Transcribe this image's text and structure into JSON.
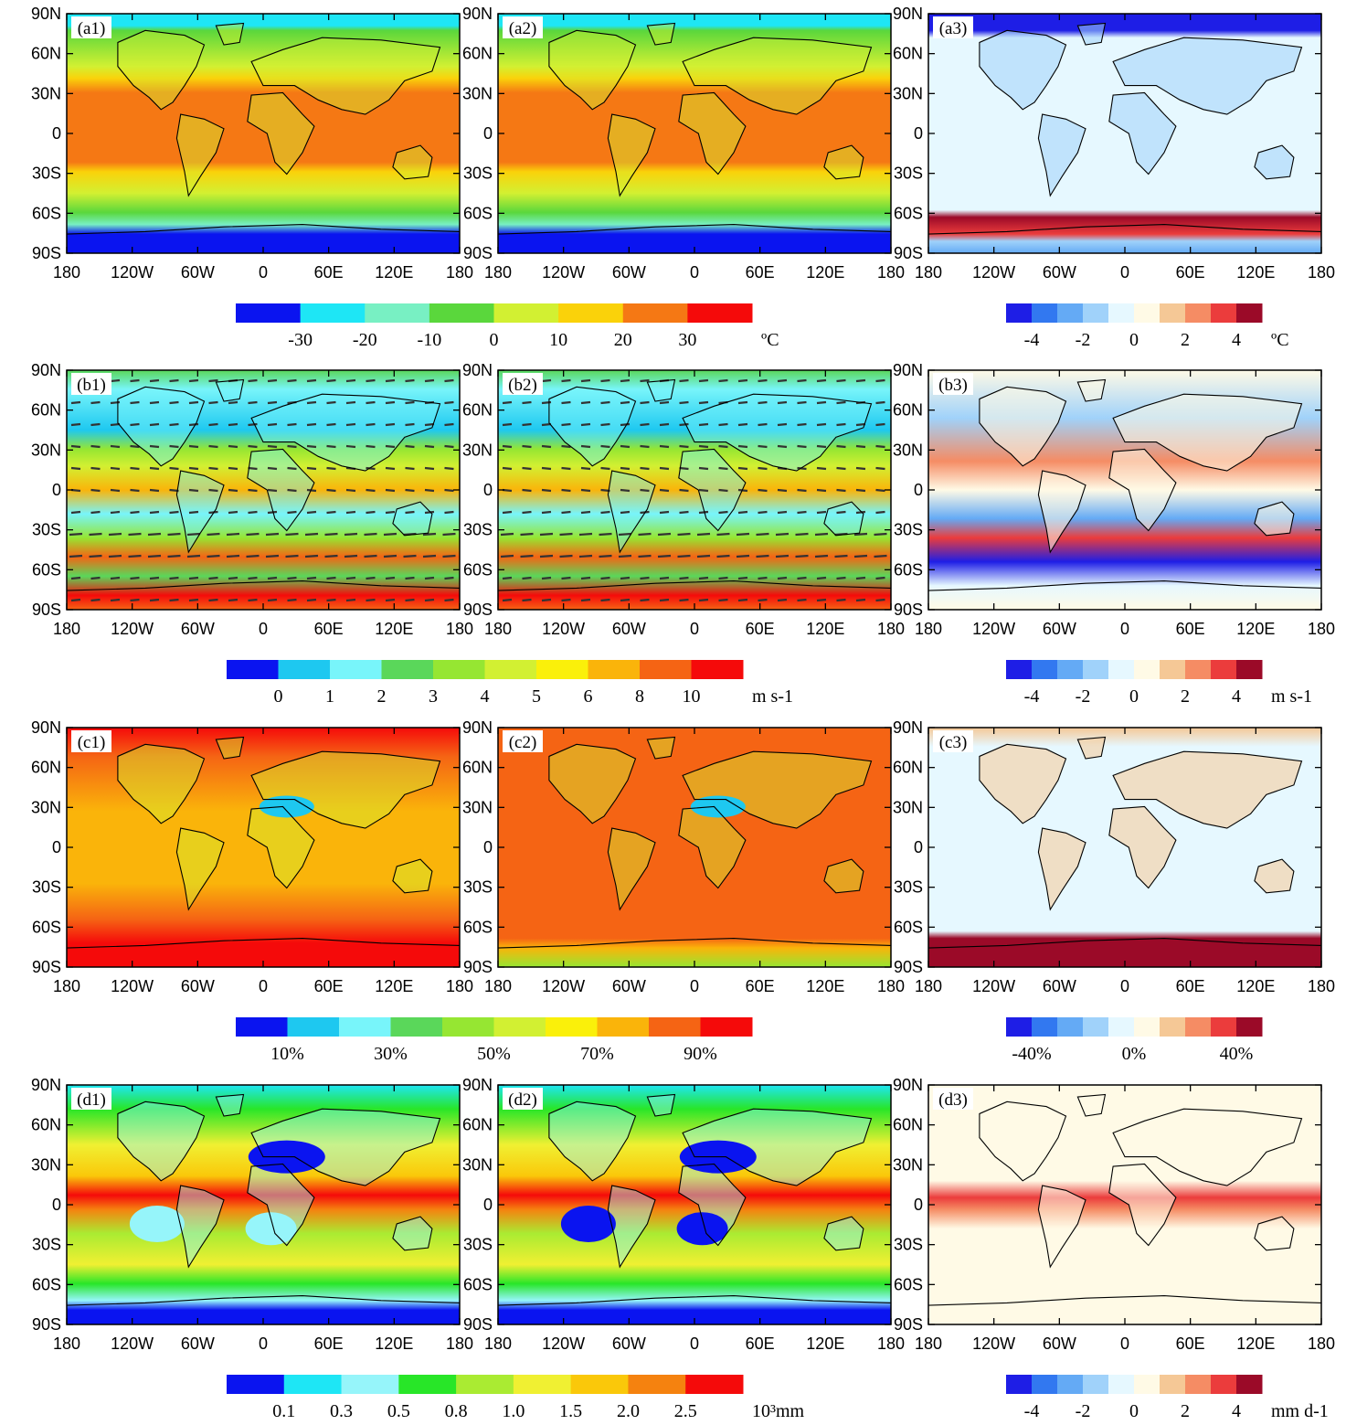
{
  "rows": [
    {
      "panels": [
        {
          "label": "(a1)",
          "field": "temp",
          "kind": "abs"
        },
        {
          "label": "(a2)",
          "field": "temp",
          "kind": "abs2"
        },
        {
          "label": "(a3)",
          "field": "tempdiff",
          "kind": "diff"
        }
      ],
      "colorbar_main": {
        "colors": [
          "#0a14f0",
          "#1ee6f5",
          "#78f0c3",
          "#5ad73c",
          "#d2f032",
          "#fad20a",
          "#f57814",
          "#f50a0a"
        ],
        "labels": [
          "-30",
          "-20",
          "-10",
          "0",
          "10",
          "20",
          "30"
        ],
        "unit": "ºC"
      },
      "colorbar_diff": {
        "colors": [
          "#1e1ee6",
          "#3278f0",
          "#64aaf5",
          "#a0d2fa",
          "#e6f8ff",
          "#fffae6",
          "#f5c896",
          "#f58c64",
          "#eb3c3c",
          "#9b0a28"
        ],
        "labels": [
          "-4",
          "-2",
          "0",
          "2",
          "4"
        ],
        "unit": "ºC"
      }
    },
    {
      "panels": [
        {
          "label": "(b1)",
          "field": "wind",
          "kind": "abs"
        },
        {
          "label": "(b2)",
          "field": "wind",
          "kind": "abs2"
        },
        {
          "label": "(b3)",
          "field": "winddiff",
          "kind": "diff"
        }
      ],
      "colorbar_main": {
        "colors": [
          "#0a14f0",
          "#1ec8f0",
          "#78f5fa",
          "#5ad75a",
          "#96e632",
          "#d2f032",
          "#faf00a",
          "#fab40a",
          "#f56414",
          "#f50a0a"
        ],
        "labels": [
          "0",
          "1",
          "2",
          "3",
          "4",
          "5",
          "6",
          "8",
          "10"
        ],
        "unit": "m s-1"
      },
      "colorbar_diff": {
        "colors": [
          "#1e1ee6",
          "#3278f0",
          "#64aaf5",
          "#a0d2fa",
          "#e6f8ff",
          "#fffae6",
          "#f5c896",
          "#f58c64",
          "#eb3c3c",
          "#9b0a28"
        ],
        "labels": [
          "-4",
          "-2",
          "0",
          "2",
          "4"
        ],
        "unit": "m s-1"
      }
    },
    {
      "panels": [
        {
          "label": "(c1)",
          "field": "rh",
          "kind": "abs"
        },
        {
          "label": "(c2)",
          "field": "rh",
          "kind": "abs2"
        },
        {
          "label": "(c3)",
          "field": "rhdiff",
          "kind": "diff"
        }
      ],
      "colorbar_main": {
        "colors": [
          "#0a14f0",
          "#1ec8f0",
          "#78f5fa",
          "#5ad75a",
          "#96e632",
          "#d2f032",
          "#faf00a",
          "#fab40a",
          "#f56414",
          "#f50a0a"
        ],
        "labels": [
          "10%",
          "30%",
          "50%",
          "70%",
          "90%"
        ],
        "unit": ""
      },
      "colorbar_diff": {
        "colors": [
          "#1e1ee6",
          "#3278f0",
          "#64aaf5",
          "#a0d2fa",
          "#e6f8ff",
          "#fffae6",
          "#f5c896",
          "#f58c64",
          "#eb3c3c",
          "#9b0a28"
        ],
        "labels": [
          "-40%",
          "0%",
          "40%"
        ],
        "unit": ""
      }
    },
    {
      "panels": [
        {
          "label": "(d1)",
          "field": "precip",
          "kind": "abs"
        },
        {
          "label": "(d2)",
          "field": "precip",
          "kind": "abs2"
        },
        {
          "label": "(d3)",
          "field": "precipdiff",
          "kind": "diff"
        }
      ],
      "colorbar_main": {
        "colors": [
          "#0a14f0",
          "#1ee6f5",
          "#96f5fa",
          "#28e628",
          "#aaeb32",
          "#f0f032",
          "#fac80a",
          "#f5820f",
          "#f50a0a"
        ],
        "labels": [
          "0.1",
          "0.3",
          "0.5",
          "0.8",
          "1.0",
          "1.5",
          "2.0",
          "2.5"
        ],
        "unit": "10³mm"
      },
      "colorbar_diff": {
        "colors": [
          "#1e1ee6",
          "#3278f0",
          "#64aaf5",
          "#a0d2fa",
          "#e6f8ff",
          "#fffae6",
          "#f5c896",
          "#f58c64",
          "#eb3c3c",
          "#9b0a28"
        ],
        "labels": [
          "-4",
          "-2",
          "0",
          "2",
          "4"
        ],
        "unit": "mm d-1"
      }
    }
  ],
  "lat_ticks": [
    "90N",
    "60N",
    "30N",
    "0",
    "30S",
    "60S",
    "90S"
  ],
  "lon_ticks": [
    "180",
    "120W",
    "60W",
    "0",
    "60E",
    "120E",
    "180"
  ]
}
